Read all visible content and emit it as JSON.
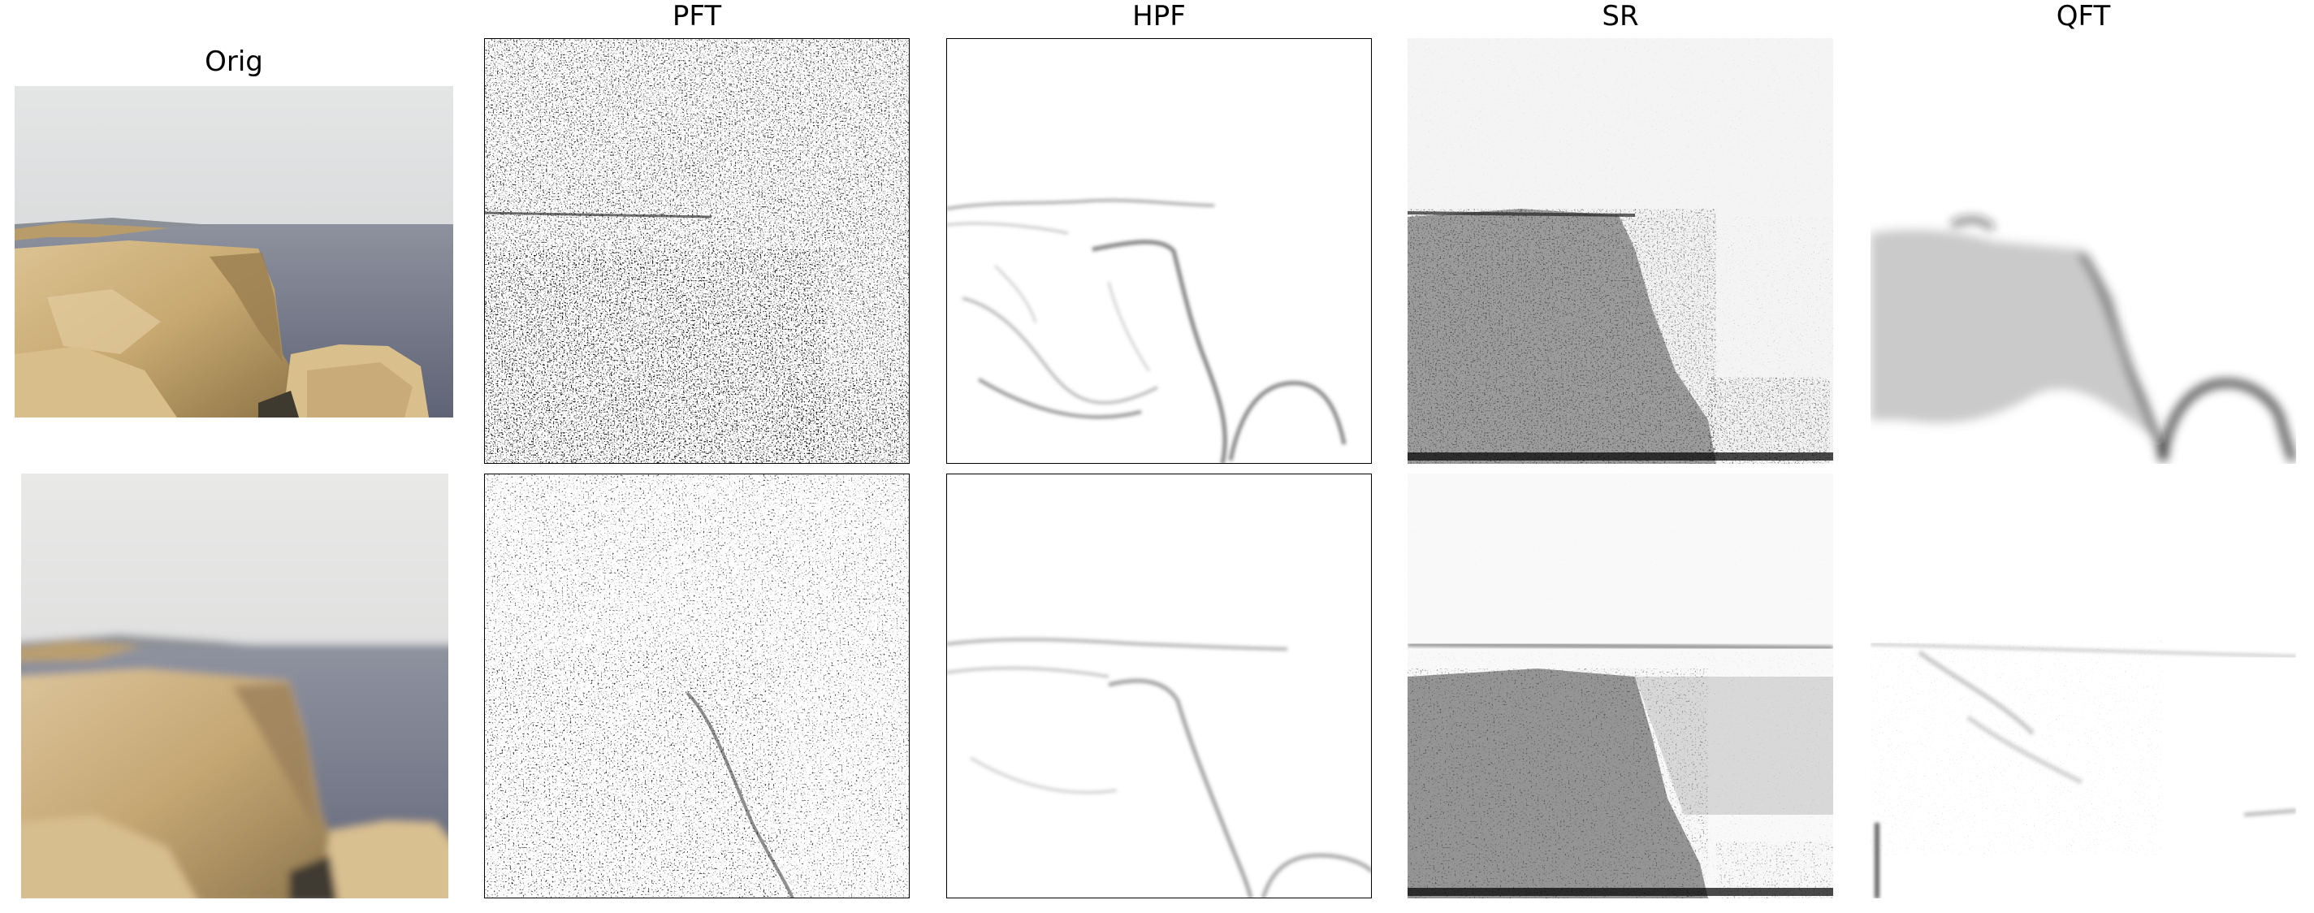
{
  "figure": {
    "columns": [
      {
        "key": "orig",
        "title": "Orig"
      },
      {
        "key": "pft",
        "title": "PFT"
      },
      {
        "key": "hpf",
        "title": "HPF"
      },
      {
        "key": "sr",
        "title": "SR"
      },
      {
        "key": "qft",
        "title": "QFT"
      }
    ],
    "rows": [
      {
        "key": "sharp"
      },
      {
        "key": "blurred"
      }
    ]
  }
}
